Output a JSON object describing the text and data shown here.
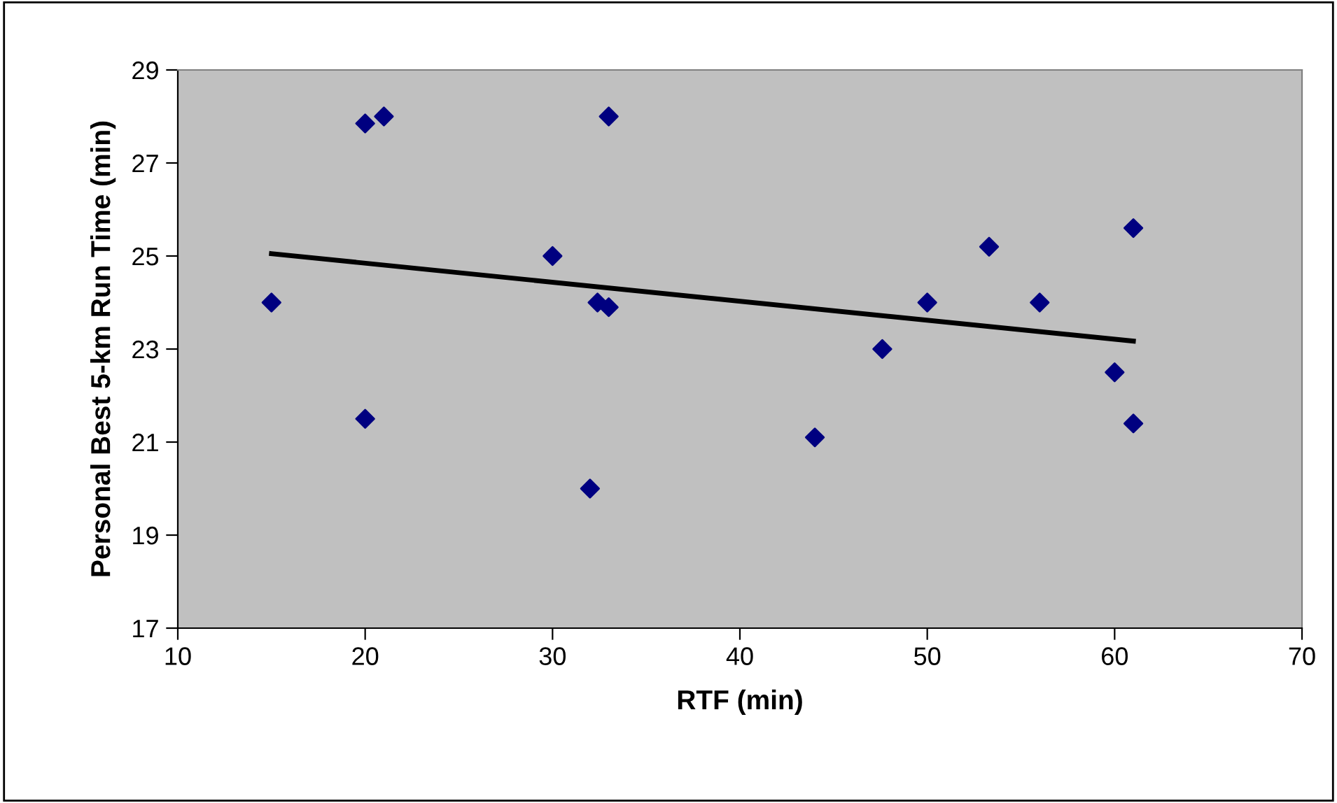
{
  "chart_data": {
    "type": "scatter",
    "xlabel": "RTF (min)",
    "ylabel": "Personal Best 5-km Run Time (min)",
    "xlim": [
      10,
      70
    ],
    "xticks": [
      10,
      20,
      30,
      40,
      50,
      60,
      70
    ],
    "ylim": [
      17,
      29
    ],
    "yticks": [
      17,
      19,
      21,
      23,
      25,
      27,
      29
    ],
    "grid": false,
    "marker": "diamond",
    "series": [
      {
        "color": "#000080",
        "x": [
          15,
          20,
          21,
          33,
          30,
          32.4,
          33,
          20,
          32,
          44,
          47.6,
          50,
          53.3,
          56,
          60,
          61,
          61
        ],
        "values": [
          24.0,
          27.85,
          28.0,
          28.0,
          25.0,
          24.0,
          23.9,
          21.5,
          20.0,
          21.1,
          23.0,
          24.0,
          25.2,
          24.0,
          22.5,
          25.6,
          21.4
        ]
      },
      {
        "type": "line",
        "color": "#000000",
        "line_style": "solid",
        "marker": "none",
        "x": [
          15,
          61
        ],
        "values": [
          25.05,
          23.17
        ]
      }
    ]
  }
}
